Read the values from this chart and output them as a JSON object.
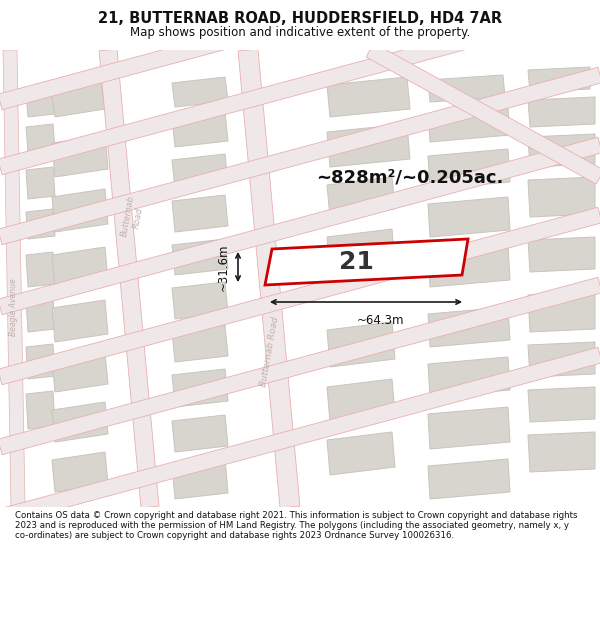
{
  "title": "21, BUTTERNAB ROAD, HUDDERSFIELD, HD4 7AR",
  "subtitle": "Map shows position and indicative extent of the property.",
  "footer": "Contains OS data © Crown copyright and database right 2021. This information is subject to Crown copyright and database rights 2023 and is reproduced with the permission of HM Land Registry. The polygons (including the associated geometry, namely x, y co-ordinates) are subject to Crown copyright and database rights 2023 Ordnance Survey 100026316.",
  "area_label": "~828m²/~0.205ac.",
  "width_label": "~64.3m",
  "height_label": "~31.6m",
  "number_label": "21",
  "map_bg": "#f2eeea",
  "road_fill": "#f0e8e8",
  "road_edge": "#e8b0b0",
  "building_fill": "#d8d4ce",
  "building_edge": "#c8c4be",
  "highlight_fill": "#ffffff",
  "highlight_edge": "#cc0000",
  "road_label_color": "#c0aeae",
  "dim_line_color": "#1a1a1a",
  "title_color": "#111111",
  "footer_color": "#111111"
}
